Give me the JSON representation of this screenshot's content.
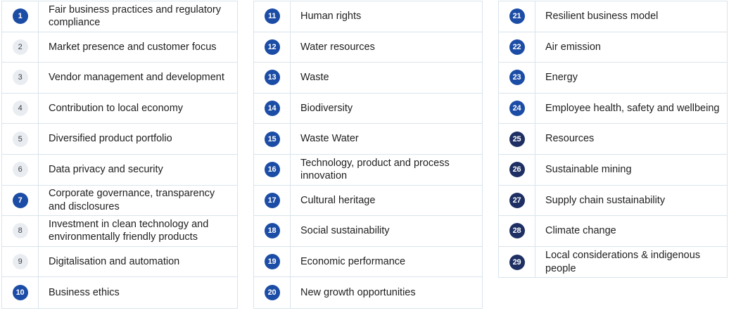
{
  "meta": {
    "description": "Materiality topics list, 29 numbered items in three bordered tables",
    "colors": {
      "badge_blue": "#1C4DA6",
      "badge_navy": "#1E2F63",
      "badge_gray_fill": "#E9EDF1",
      "badge_gray_text": "#3A3F44",
      "table_border": "#D9E4EC",
      "text": "#1F1F1F"
    }
  },
  "columns": [
    {
      "items": [
        {
          "num": "1",
          "label": "Fair business practices and regulatory compliance",
          "badge_style": "blue"
        },
        {
          "num": "2",
          "label": "Market presence and customer focus",
          "badge_style": "gray"
        },
        {
          "num": "3",
          "label": "Vendor management and development",
          "badge_style": "gray"
        },
        {
          "num": "4",
          "label": "Contribution to local economy",
          "badge_style": "gray"
        },
        {
          "num": "5",
          "label": "Diversified product portfolio",
          "badge_style": "gray"
        },
        {
          "num": "6",
          "label": "Data privacy and security",
          "badge_style": "gray"
        },
        {
          "num": "7",
          "label": "Corporate governance, transparency and disclosures",
          "badge_style": "blue"
        },
        {
          "num": "8",
          "label": "Investment in clean technology and environmentally friendly products",
          "badge_style": "gray"
        },
        {
          "num": "9",
          "label": "Digitalisation and automation",
          "badge_style": "gray"
        },
        {
          "num": "10",
          "label": "Business ethics",
          "badge_style": "blue"
        }
      ]
    },
    {
      "items": [
        {
          "num": "11",
          "label": "Human rights",
          "badge_style": "blue"
        },
        {
          "num": "12",
          "label": "Water resources",
          "badge_style": "blue"
        },
        {
          "num": "13",
          "label": "Waste",
          "badge_style": "blue"
        },
        {
          "num": "14",
          "label": "Biodiversity",
          "badge_style": "blue"
        },
        {
          "num": "15",
          "label": "Waste Water",
          "badge_style": "blue"
        },
        {
          "num": "16",
          "label": "Technology, product and process innovation",
          "badge_style": "blue"
        },
        {
          "num": "17",
          "label": "Cultural heritage",
          "badge_style": "blue"
        },
        {
          "num": "18",
          "label": "Social sustainability",
          "badge_style": "blue"
        },
        {
          "num": "19",
          "label": "Economic performance",
          "badge_style": "blue"
        },
        {
          "num": "20",
          "label": "New growth opportunities",
          "badge_style": "blue"
        }
      ]
    },
    {
      "items": [
        {
          "num": "21",
          "label": "Resilient business model",
          "badge_style": "blue"
        },
        {
          "num": "22",
          "label": "Air emission",
          "badge_style": "blue"
        },
        {
          "num": "23",
          "label": "Energy",
          "badge_style": "blue"
        },
        {
          "num": "24",
          "label": "Employee health, safety and wellbeing",
          "badge_style": "blue"
        },
        {
          "num": "25",
          "label": "Resources",
          "badge_style": "navy"
        },
        {
          "num": "26",
          "label": "Sustainable mining",
          "badge_style": "navy"
        },
        {
          "num": "27",
          "label": "Supply chain sustainability",
          "badge_style": "navy"
        },
        {
          "num": "28",
          "label": "Climate change",
          "badge_style": "navy"
        },
        {
          "num": "29",
          "label": "Local considerations & indigenous people",
          "badge_style": "navy"
        }
      ]
    }
  ]
}
